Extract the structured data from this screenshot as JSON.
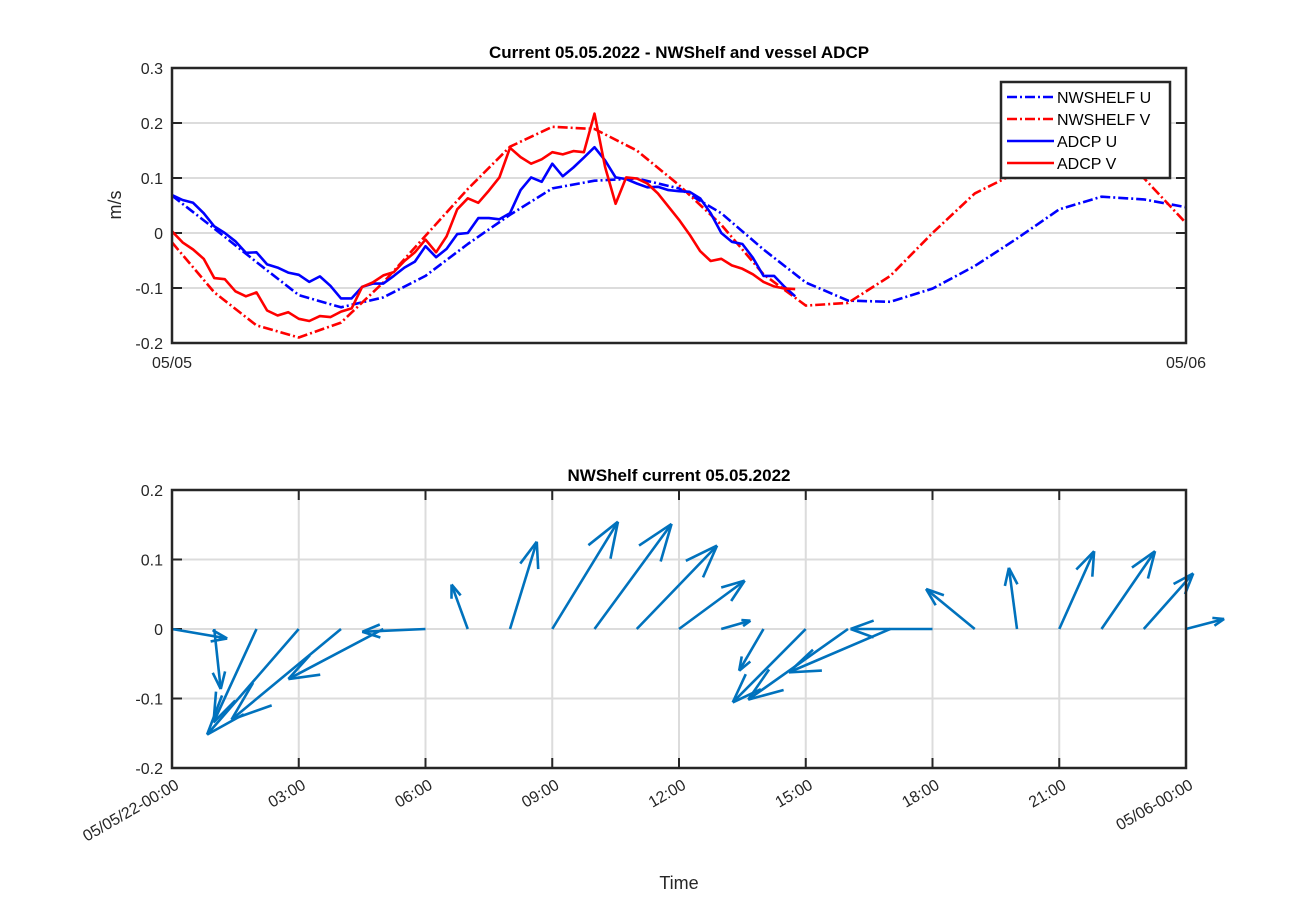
{
  "chart_data": [
    {
      "type": "line",
      "title": "Current 05.05.2022 - NWShelf and vessel ADCP",
      "xlabel": "",
      "ylabel": "m/s",
      "ylim": [
        -0.2,
        0.3
      ],
      "yticks": [
        "-0.2",
        "-0.1",
        "0",
        "0.1",
        "0.2",
        "0.3"
      ],
      "xticks": [
        "05/05",
        "05/06"
      ],
      "grid": "horizontal",
      "legend_placement": "top-right",
      "model_time": [
        "00:00",
        "01:00",
        "02:00",
        "03:00",
        "04:00",
        "05:00",
        "06:00",
        "07:00",
        "08:00",
        "09:00",
        "10:00",
        "11:00",
        "12:00",
        "13:00",
        "14:00",
        "15:00",
        "16:00",
        "17:00",
        "18:00",
        "19:00",
        "20:00",
        "21:00",
        "22:00",
        "23:00",
        "24:00"
      ],
      "adcp_time": [
        "00:00",
        "00:15",
        "00:30",
        "00:45",
        "01:00",
        "01:15",
        "01:30",
        "01:45",
        "02:00",
        "02:15",
        "02:30",
        "02:45",
        "03:00",
        "03:15",
        "03:30",
        "03:45",
        "04:00",
        "04:15",
        "04:30",
        "04:45",
        "05:00",
        "05:15",
        "05:30",
        "05:45",
        "06:00",
        "06:15",
        "06:30",
        "06:45",
        "07:00",
        "07:15",
        "07:30",
        "07:45",
        "08:00",
        "08:15",
        "08:30",
        "08:45",
        "09:00",
        "09:15",
        "09:30",
        "09:45",
        "10:00",
        "10:15",
        "10:30",
        "10:45",
        "11:00",
        "11:15",
        "11:30",
        "11:45",
        "12:00",
        "12:15",
        "12:30",
        "12:45",
        "13:00",
        "13:15",
        "13:30",
        "13:45",
        "14:00",
        "14:15",
        "14:30",
        "14:45"
      ],
      "series": [
        {
          "name": "NWSHELF U",
          "color": "#0000FF",
          "style": "dash-dot",
          "time": "model_time",
          "values": [
            0.068,
            0.008,
            -0.053,
            -0.113,
            -0.135,
            -0.117,
            -0.078,
            -0.02,
            0.033,
            0.081,
            0.095,
            0.099,
            0.081,
            0.036,
            -0.03,
            -0.09,
            -0.123,
            -0.125,
            -0.101,
            -0.06,
            -0.01,
            0.043,
            0.066,
            0.061,
            0.047
          ]
        },
        {
          "name": "NWSHELF V",
          "color": "#FF0000",
          "style": "dash-dot",
          "time": "model_time",
          "values": [
            -0.017,
            -0.108,
            -0.168,
            -0.19,
            -0.163,
            -0.09,
            -0.005,
            0.08,
            0.157,
            0.193,
            0.189,
            0.15,
            0.087,
            0.015,
            -0.075,
            -0.132,
            -0.127,
            -0.078,
            0.0,
            0.072,
            0.11,
            0.14,
            0.14,
            0.1,
            0.018
          ]
        },
        {
          "name": "ADCP U",
          "color": "#0000FF",
          "style": "solid",
          "time": "adcp_time",
          "values": [
            0.069,
            0.06,
            0.055,
            0.036,
            0.012,
            0.0,
            -0.015,
            -0.036,
            -0.035,
            -0.057,
            -0.063,
            -0.072,
            -0.076,
            -0.089,
            -0.079,
            -0.096,
            -0.119,
            -0.119,
            -0.098,
            -0.092,
            -0.092,
            -0.078,
            -0.063,
            -0.052,
            -0.024,
            -0.044,
            -0.029,
            -0.002,
            0.0,
            0.027,
            0.027,
            0.025,
            0.036,
            0.078,
            0.101,
            0.093,
            0.126,
            0.103,
            0.119,
            0.137,
            0.156,
            0.132,
            0.101,
            0.098,
            0.09,
            0.083,
            0.084,
            0.078,
            0.076,
            0.075,
            0.063,
            0.036,
            0.0,
            -0.016,
            -0.02,
            -0.045,
            -0.078,
            -0.078,
            -0.098,
            -0.115
          ]
        },
        {
          "name": "ADCP V",
          "color": "#FF0000",
          "style": "solid",
          "time": "adcp_time",
          "values": [
            0.003,
            -0.017,
            -0.03,
            -0.047,
            -0.082,
            -0.084,
            -0.106,
            -0.115,
            -0.108,
            -0.141,
            -0.15,
            -0.144,
            -0.156,
            -0.16,
            -0.151,
            -0.153,
            -0.143,
            -0.137,
            -0.098,
            -0.09,
            -0.077,
            -0.071,
            -0.051,
            -0.035,
            -0.012,
            -0.035,
            -0.006,
            0.043,
            0.063,
            0.055,
            0.077,
            0.101,
            0.155,
            0.138,
            0.126,
            0.134,
            0.147,
            0.143,
            0.149,
            0.147,
            0.217,
            0.12,
            0.053,
            0.101,
            0.099,
            0.09,
            0.072,
            0.048,
            0.024,
            -0.003,
            -0.033,
            -0.051,
            -0.047,
            -0.059,
            -0.065,
            -0.075,
            -0.089,
            -0.097,
            -0.101,
            -0.102
          ]
        }
      ]
    },
    {
      "type": "quiver",
      "title": "NWShelf current 05.05.2022",
      "xlabel": "Time",
      "ylabel": "",
      "ylim": [
        -0.2,
        0.2
      ],
      "yticks": [
        "-0.2",
        "-0.1",
        "0",
        "0.1",
        "0.2"
      ],
      "xticks": [
        "05/05/22-00:00",
        "03:00",
        "06:00",
        "09:00",
        "12:00",
        "15:00",
        "18:00",
        "21:00",
        "05/06-00:00"
      ],
      "grid": "both",
      "color": "#0072BD",
      "source": "NWSHELF U / NWSHELF V, hourly"
    }
  ]
}
